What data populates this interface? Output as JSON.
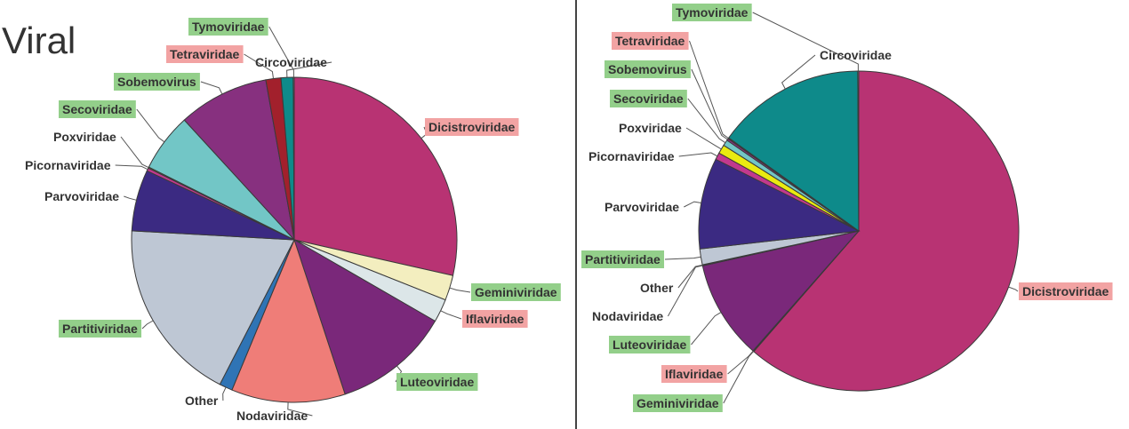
{
  "page": {
    "title": "Viral"
  },
  "colors": {
    "Dicistroviridae": "#b83373",
    "Geminiviridae": "#f3eebf",
    "Iflaviridae": "#dce6e8",
    "Luteoviridae": "#7a287a",
    "Nodaviridae": "#ef7d78",
    "Other": "#2f74b5",
    "Partitiviridae": "#bec7d4",
    "Parvoviridae": "#3b2a82",
    "Picornaviridae": "#c2398e",
    "Poxviridae": "#eaea10",
    "Secoviridae": "#72c6c6",
    "Sobemovirus": "#87307f",
    "Tetraviridae": "#a2202c",
    "Circoviridae": "#0e8a8a",
    "Tymoviridae": "#a9d9dc",
    "highlight_green": "#93cf8a",
    "highlight_red": "#f2a3a3"
  },
  "chart_data": [
    {
      "type": "pie",
      "title": "",
      "slices": [
        {
          "label": "Dicistroviridae",
          "value": 28.5,
          "highlight": "red"
        },
        {
          "label": "Geminiviridae",
          "value": 2.5,
          "highlight": "green"
        },
        {
          "label": "Iflaviridae",
          "value": 2.3,
          "highlight": "red"
        },
        {
          "label": "Luteoviridae",
          "value": 11.6,
          "highlight": "green"
        },
        {
          "label": "Nodaviridae",
          "value": 11.3,
          "highlight": "none"
        },
        {
          "label": "Other",
          "value": 1.3,
          "highlight": "none"
        },
        {
          "label": "Partitiviridae",
          "value": 18.3,
          "highlight": "green"
        },
        {
          "label": "Parvoviridae",
          "value": 6.1,
          "highlight": "none"
        },
        {
          "label": "Picornaviridae",
          "value": 0.3,
          "highlight": "none"
        },
        {
          "label": "Poxviridae",
          "value": 0.1,
          "highlight": "none"
        },
        {
          "label": "Secoviridae",
          "value": 5.8,
          "highlight": "green"
        },
        {
          "label": "Sobemovirus",
          "value": 9.0,
          "highlight": "green"
        },
        {
          "label": "Tetraviridae",
          "value": 1.5,
          "highlight": "red"
        },
        {
          "label": "Circoviridae",
          "value": 1.2,
          "highlight": "none"
        },
        {
          "label": "Tymoviridae",
          "value": 0.1,
          "highlight": "green"
        }
      ]
    },
    {
      "type": "pie",
      "title": "",
      "slices": [
        {
          "label": "Dicistroviridae",
          "value": 61.4,
          "highlight": "red"
        },
        {
          "label": "Geminiviridae",
          "value": 0.05,
          "highlight": "green"
        },
        {
          "label": "Iflaviridae",
          "value": 0.05,
          "highlight": "red"
        },
        {
          "label": "Luteoviridae",
          "value": 10.0,
          "highlight": "green"
        },
        {
          "label": "Nodaviridae",
          "value": 0.05,
          "highlight": "none"
        },
        {
          "label": "Other",
          "value": 0.05,
          "highlight": "none"
        },
        {
          "label": "Partitiviridae",
          "value": 1.6,
          "highlight": "green"
        },
        {
          "label": "Parvoviridae",
          "value": 9.2,
          "highlight": "none"
        },
        {
          "label": "Picornaviridae",
          "value": 0.7,
          "highlight": "none"
        },
        {
          "label": "Poxviridae",
          "value": 0.9,
          "highlight": "none"
        },
        {
          "label": "Secoviridae",
          "value": 0.6,
          "highlight": "green"
        },
        {
          "label": "Sobemovirus",
          "value": 0.2,
          "highlight": "green"
        },
        {
          "label": "Tetraviridae",
          "value": 0.1,
          "highlight": "red"
        },
        {
          "label": "Circoviridae",
          "value": 15.0,
          "highlight": "none"
        },
        {
          "label": "Tymoviridae",
          "value": 0.1,
          "highlight": "green"
        }
      ]
    }
  ]
}
